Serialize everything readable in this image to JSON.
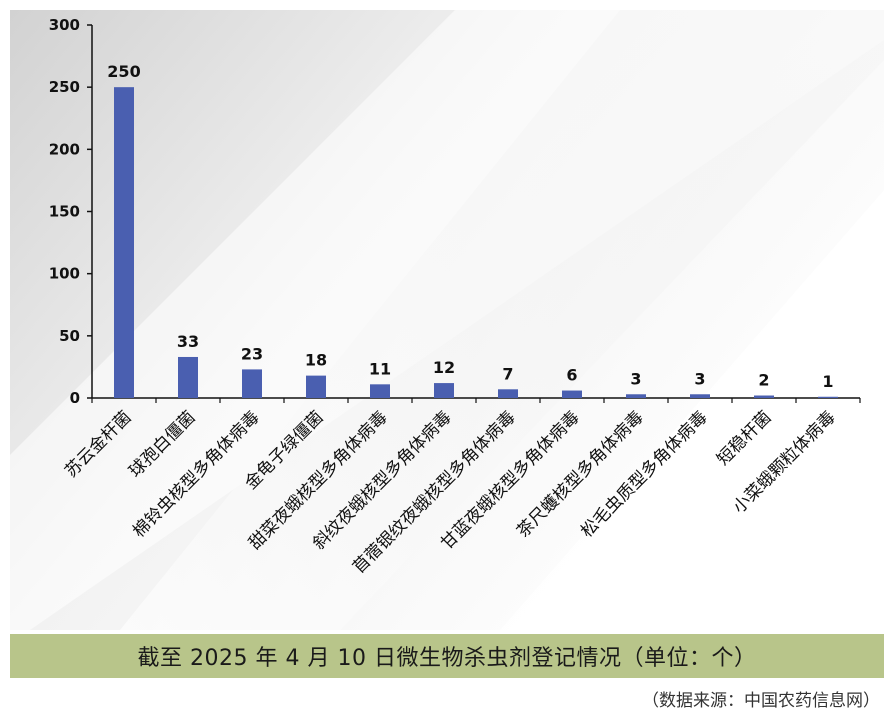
{
  "chart_data": {
    "type": "bar",
    "title": "截至 2025 年 4 月 10 日微生物杀虫剂登记情况（单位：个）",
    "unit": "个",
    "categories": [
      "苏云金杆菌",
      "球孢白僵菌",
      "棉铃虫核型多角体病毒",
      "金龟子绿僵菌",
      "甜菜夜蛾核型多角体病毒",
      "斜纹夜蛾核型多角体病毒",
      "苜蓿银纹夜蛾核型多角体病毒",
      "甘蓝夜蛾核型多角体病毒",
      "茶尺蠖核型多角体病毒",
      "松毛虫质型多角体病毒",
      "短稳杆菌",
      "小菜蛾颗粒体病毒"
    ],
    "values": [
      250,
      33,
      23,
      18,
      11,
      12,
      7,
      6,
      3,
      3,
      2,
      1
    ],
    "ylim": [
      0,
      300
    ],
    "yticks": [
      0,
      50,
      100,
      150,
      200,
      250,
      300
    ],
    "xlabel": "",
    "ylabel": "",
    "bar_color": "#4a5fb0",
    "source": "（数据来源：中国农药信息网）"
  },
  "colors": {
    "title_band": "#b8c58a",
    "bar": "#4a5fb0",
    "background_shadow": "#c9c9c9"
  }
}
